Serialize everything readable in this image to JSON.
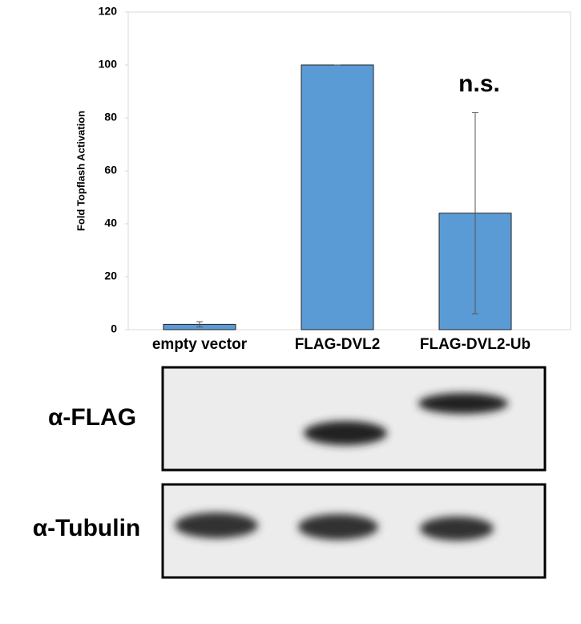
{
  "chart_data": {
    "type": "bar",
    "ylabel": "Fold Topflash Activation",
    "categories": [
      "empty vector",
      "FLAG-DVL2",
      "FLAG-DVL2-Ub"
    ],
    "values": [
      2,
      100,
      44
    ],
    "errors": [
      1,
      0,
      38
    ],
    "color": "#5b9bd5",
    "ylim": [
      0,
      120
    ],
    "yticks": [
      0,
      20,
      40,
      60,
      80,
      100,
      120
    ],
    "annotation": "n.s."
  },
  "blot_labels": [
    "α-FLAG",
    "α-Tubulin"
  ]
}
